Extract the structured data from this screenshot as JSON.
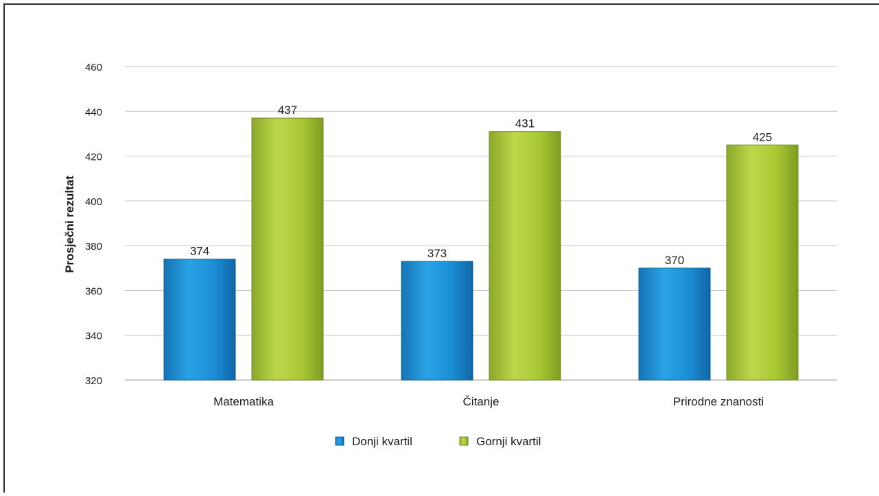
{
  "chart_data": {
    "type": "bar",
    "title": "",
    "xlabel": "",
    "ylabel": "Prosječni rezultat",
    "ylim": [
      320,
      460
    ],
    "yticks": [
      320,
      340,
      360,
      380,
      400,
      420,
      440,
      460
    ],
    "grid": true,
    "legend_position": "bottom-center",
    "categories": [
      "Matematika",
      "Čitanje",
      "Prirodne znanosti"
    ],
    "series": [
      {
        "name": "Donji kvartil",
        "values": [
          374,
          373,
          370
        ],
        "color": "#1e8fd6"
      },
      {
        "name": "Gornji kvartil",
        "values": [
          437,
          431,
          425
        ],
        "color": "#a8c832"
      }
    ]
  }
}
